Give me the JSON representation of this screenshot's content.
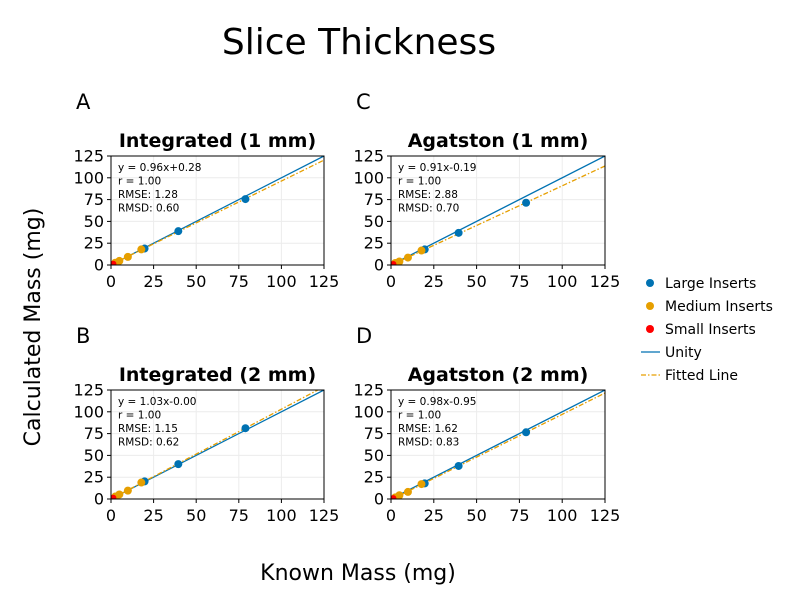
{
  "figure_title": "Slice Thickness",
  "xlabel": "Known Mass (mg)",
  "ylabel": "Calculated Mass (mg)",
  "legend": [
    {
      "label": "Large Inserts",
      "kind": "marker",
      "color": "#0072b2"
    },
    {
      "label": "Medium Inserts",
      "kind": "marker",
      "color": "#e69f00"
    },
    {
      "label": "Small Inserts",
      "kind": "marker",
      "color": "#ff0000"
    },
    {
      "label": "Unity",
      "kind": "line",
      "color": "#0072b2"
    },
    {
      "label": "Fitted Line",
      "kind": "dashdot",
      "color": "#e69f00"
    }
  ],
  "chart_data": [
    {
      "letter": "A",
      "type": "scatter",
      "title": "Integrated (1 mm)",
      "xlim": [
        0,
        125
      ],
      "ylim": [
        0,
        125
      ],
      "ticks": [
        0,
        25,
        50,
        75,
        100,
        125
      ],
      "fit": {
        "slope": 0.96,
        "intercept": 0.28
      },
      "annotation": [
        "y = 0.96x+0.28",
        "r = 1.00",
        "RMSE: 1.28",
        "RMSD: 0.60"
      ],
      "series": [
        {
          "name": "Large Inserts",
          "color": "#0072b2",
          "x": [
            19.7,
            39.5,
            78.9
          ],
          "y": [
            18.9,
            38.8,
            75.6
          ]
        },
        {
          "name": "Medium Inserts",
          "color": "#e69f00",
          "x": [
            2.5,
            4.9,
            9.9,
            17.8
          ],
          "y": [
            2.6,
            4.7,
            9.3,
            17.9
          ]
        },
        {
          "name": "Small Inserts",
          "color": "#ff0000",
          "x": [
            0.2,
            0.4,
            0.8,
            1.4
          ],
          "y": [
            0.2,
            0.4,
            0.8,
            1.4
          ]
        }
      ]
    },
    {
      "letter": "C",
      "type": "scatter",
      "title": "Agatston (1 mm)",
      "xlim": [
        0,
        125
      ],
      "ylim": [
        0,
        125
      ],
      "ticks": [
        0,
        25,
        50,
        75,
        100,
        125
      ],
      "fit": {
        "slope": 0.91,
        "intercept": -0.19
      },
      "annotation": [
        "y = 0.91x-0.19",
        "r = 1.00",
        "RMSE: 2.88",
        "RMSD: 0.70"
      ],
      "series": [
        {
          "name": "Large Inserts",
          "color": "#0072b2",
          "x": [
            19.7,
            39.5,
            78.9
          ],
          "y": [
            17.9,
            36.9,
            71.4
          ]
        },
        {
          "name": "Medium Inserts",
          "color": "#e69f00",
          "x": [
            2.5,
            4.9,
            9.9,
            17.8
          ],
          "y": [
            2.3,
            4.0,
            8.5,
            16.6
          ]
        },
        {
          "name": "Small Inserts",
          "color": "#ff0000",
          "x": [
            0.2,
            0.4,
            0.8,
            1.4
          ],
          "y": [
            0.1,
            0.3,
            0.6,
            1.1
          ]
        }
      ]
    },
    {
      "letter": "B",
      "type": "scatter",
      "title": "Integrated (2 mm)",
      "xlim": [
        0,
        125
      ],
      "ylim": [
        0,
        125
      ],
      "ticks": [
        0,
        25,
        50,
        75,
        100,
        125
      ],
      "fit": {
        "slope": 1.03,
        "intercept": -0.0
      },
      "annotation": [
        "y = 1.03x-0.00",
        "r = 1.00",
        "RMSE: 1.15",
        "RMSD: 0.62"
      ],
      "series": [
        {
          "name": "Large Inserts",
          "color": "#0072b2",
          "x": [
            19.7,
            39.5,
            78.9
          ],
          "y": [
            20.2,
            40.0,
            81.2
          ]
        },
        {
          "name": "Medium Inserts",
          "color": "#e69f00",
          "x": [
            2.5,
            4.9,
            9.9,
            17.8
          ],
          "y": [
            2.8,
            5.2,
            9.6,
            18.9
          ]
        },
        {
          "name": "Small Inserts",
          "color": "#ff0000",
          "x": [
            0.2,
            0.4,
            0.8,
            1.4
          ],
          "y": [
            0.2,
            0.4,
            0.8,
            1.5
          ]
        }
      ]
    },
    {
      "letter": "D",
      "type": "scatter",
      "title": "Agatston (2 mm)",
      "xlim": [
        0,
        125
      ],
      "ylim": [
        0,
        125
      ],
      "ticks": [
        0,
        25,
        50,
        75,
        100,
        125
      ],
      "fit": {
        "slope": 0.98,
        "intercept": -0.95
      },
      "annotation": [
        "y = 0.98x-0.95",
        "r = 1.00",
        "RMSE: 1.62",
        "RMSD: 0.83"
      ],
      "series": [
        {
          "name": "Large Inserts",
          "color": "#0072b2",
          "x": [
            19.7,
            39.5,
            78.9
          ],
          "y": [
            17.9,
            37.9,
            76.5
          ]
        },
        {
          "name": "Medium Inserts",
          "color": "#e69f00",
          "x": [
            2.5,
            4.9,
            9.9,
            17.8
          ],
          "y": [
            1.9,
            4.3,
            8.1,
            17.1
          ]
        },
        {
          "name": "Small Inserts",
          "color": "#ff0000",
          "x": [
            0.2,
            0.4,
            0.8,
            1.4
          ],
          "y": [
            0.1,
            0.2,
            0.5,
            1.0
          ]
        }
      ]
    }
  ]
}
